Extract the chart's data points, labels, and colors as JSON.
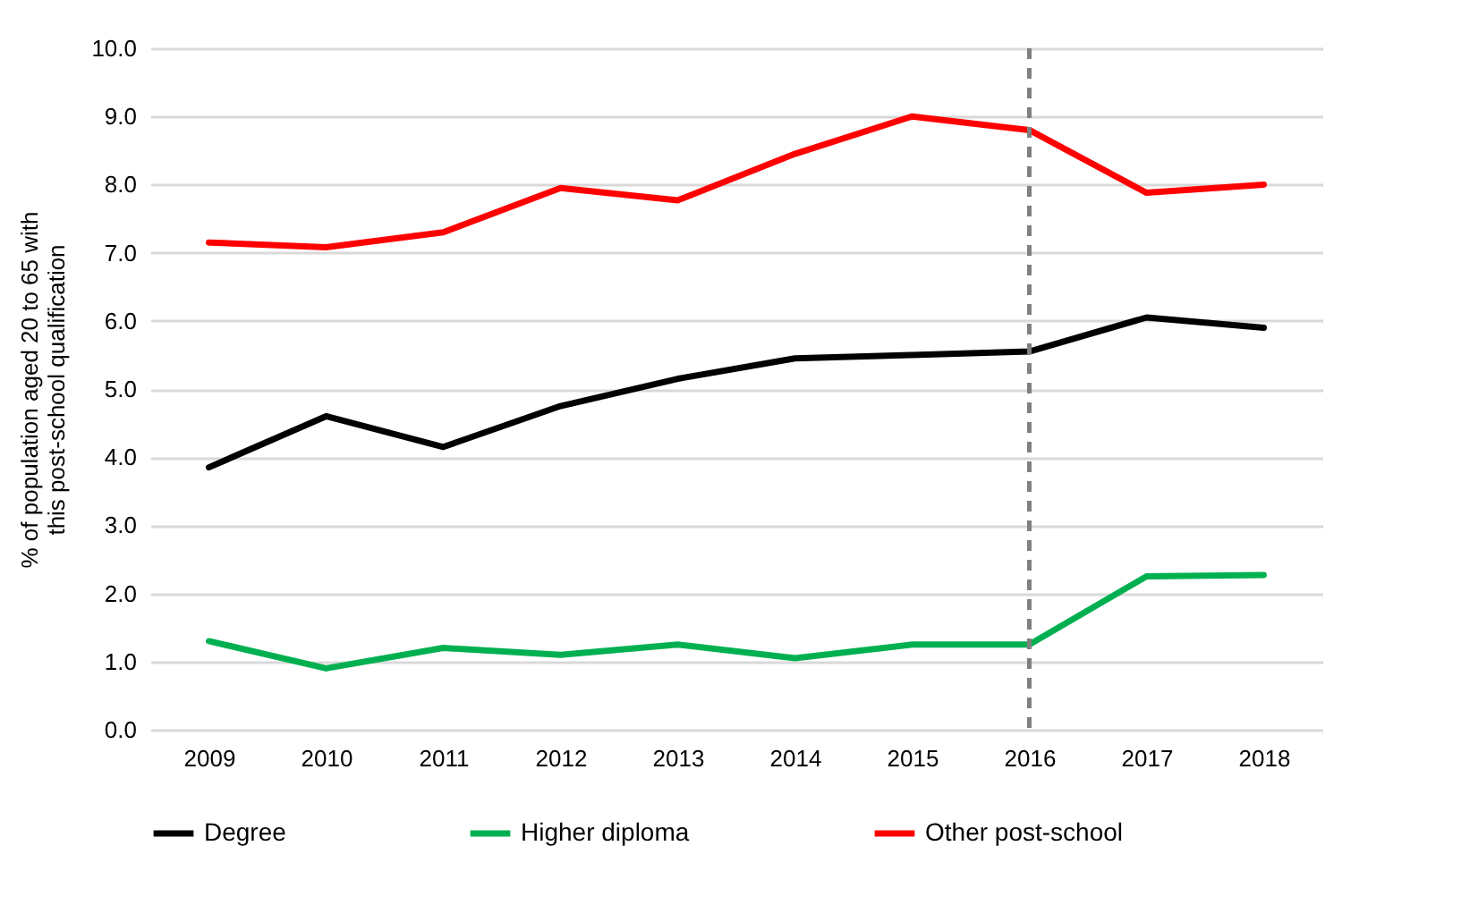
{
  "chart_data": {
    "type": "line",
    "ylabel": "% of population aged 20 to 65 with this post-school qualification",
    "categories": [
      "2009",
      "2010",
      "2011",
      "2012",
      "2013",
      "2014",
      "2015",
      "2016",
      "2017",
      "2018"
    ],
    "series": [
      {
        "name": "Degree",
        "color": "#000000",
        "values": [
          3.85,
          4.6,
          4.15,
          4.75,
          5.15,
          5.45,
          5.5,
          5.55,
          6.05,
          5.9
        ]
      },
      {
        "name": "Higher diploma",
        "color": "#00b050",
        "values": [
          1.3,
          0.9,
          1.2,
          1.1,
          1.25,
          1.05,
          1.25,
          1.25,
          2.25,
          2.27
        ]
      },
      {
        "name": "Other post-school",
        "color": "#ff0000",
        "values": [
          7.15,
          7.08,
          7.3,
          7.95,
          7.77,
          8.45,
          9.0,
          8.8,
          7.88,
          8.0
        ]
      }
    ],
    "ylim": [
      0,
      10
    ],
    "yticks": [
      {
        "value": 0,
        "label": "0.0"
      },
      {
        "value": 1,
        "label": "1.0"
      },
      {
        "value": 2,
        "label": "2.0"
      },
      {
        "value": 3,
        "label": "3.0"
      },
      {
        "value": 4,
        "label": "4.0"
      },
      {
        "value": 5,
        "label": "5.0"
      },
      {
        "value": 6,
        "label": "6.0"
      },
      {
        "value": 7,
        "label": "7.0"
      },
      {
        "value": 8,
        "label": "8.0"
      },
      {
        "value": 9,
        "label": "9.0"
      },
      {
        "value": 10,
        "label": "10.0"
      }
    ],
    "ref_lines": [
      {
        "axis": "x",
        "value": "2016",
        "color": "#808080",
        "line_style": "dashed"
      }
    ],
    "grid": "y",
    "legend": "bottom",
    "marker": "none",
    "line_style": "solid"
  }
}
